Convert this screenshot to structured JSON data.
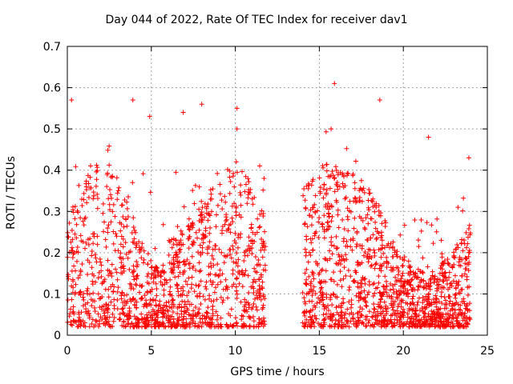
{
  "chart_data": {
    "type": "scatter",
    "title": "Day 044 of 2022, Rate Of TEC Index for receiver dav1",
    "xlabel": "GPS time / hours",
    "ylabel": "ROTI / TECUs",
    "xlim": [
      0,
      25
    ],
    "ylim": [
      0,
      0.7
    ],
    "xticks": [
      0,
      5,
      10,
      15,
      20,
      25
    ],
    "yticks": [
      0,
      0.1,
      0.2,
      0.3,
      0.4,
      0.5,
      0.6,
      0.7
    ],
    "ytick_labels": [
      "0",
      "0.1",
      "0.2",
      "0.3",
      "0.4",
      "0.5",
      "0.6",
      "0.7"
    ],
    "grid": true,
    "marker": "+",
    "color": "#ff0000",
    "data_gap_hours": [
      11.8,
      14.0
    ],
    "notable_points": [
      {
        "x": 0.25,
        "y": 0.57
      },
      {
        "x": 3.9,
        "y": 0.57
      },
      {
        "x": 4.9,
        "y": 0.53
      },
      {
        "x": 6.9,
        "y": 0.54
      },
      {
        "x": 8.0,
        "y": 0.56
      },
      {
        "x": 10.1,
        "y": 0.55
      },
      {
        "x": 10.1,
        "y": 0.5
      },
      {
        "x": 15.7,
        "y": 0.5
      },
      {
        "x": 15.9,
        "y": 0.61
      },
      {
        "x": 18.6,
        "y": 0.57
      },
      {
        "x": 21.5,
        "y": 0.48
      },
      {
        "x": 23.9,
        "y": 0.43
      }
    ]
  }
}
